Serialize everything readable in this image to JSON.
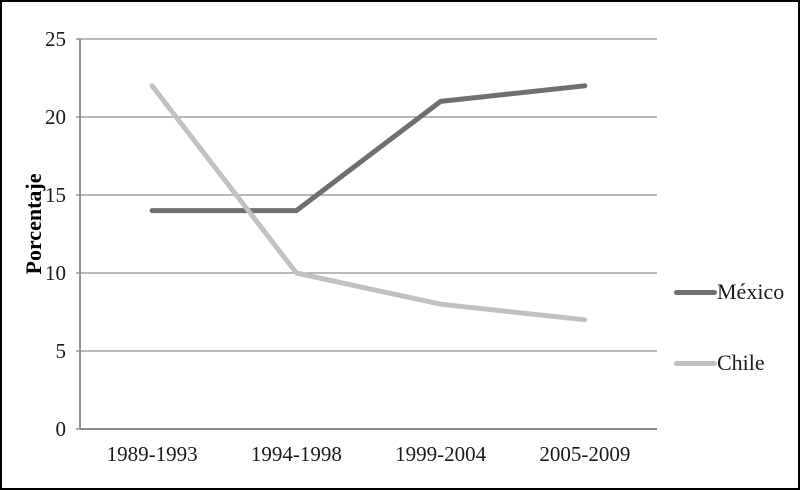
{
  "figure": {
    "background": "#ffffff",
    "border_color": "#000000",
    "gridline_color": "#8f8f8f",
    "axis_color": "#808080",
    "text_color": "#1a1a1a"
  },
  "chart_data": {
    "type": "line",
    "title": "",
    "xlabel": "",
    "ylabel": "Porcentaje",
    "categories": [
      "1989-1993",
      "1994-1998",
      "1999-2004",
      "2005-2009"
    ],
    "series": [
      {
        "name": "México",
        "values": [
          14,
          14,
          21,
          22
        ],
        "color": "#6f6f6f"
      },
      {
        "name": "Chile",
        "values": [
          22,
          10,
          8,
          7
        ],
        "color": "#c1c1c1"
      }
    ],
    "ylim": [
      0,
      25
    ],
    "yticks": [
      0,
      5,
      10,
      15,
      20,
      25
    ],
    "grid": true,
    "legend_position": "right"
  }
}
